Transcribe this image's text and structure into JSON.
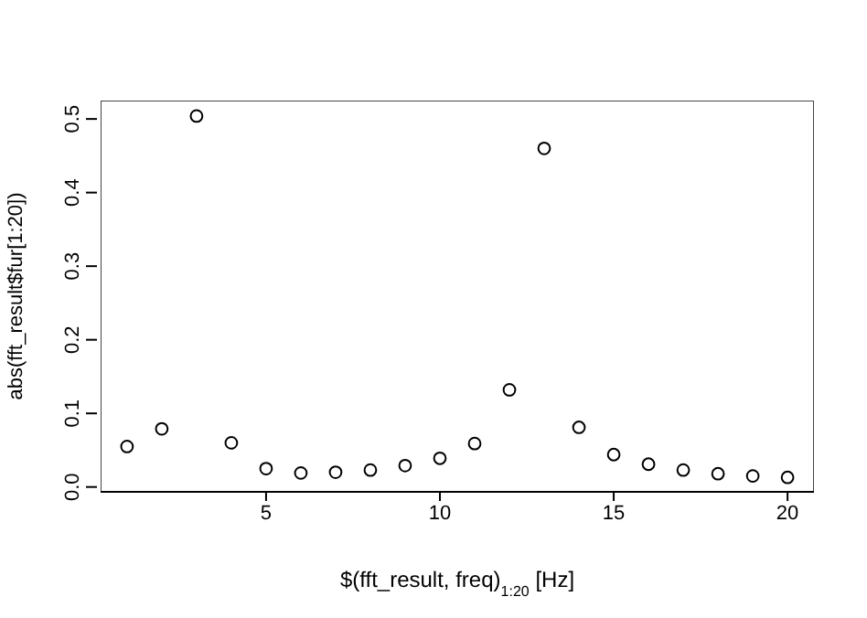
{
  "chart_data": {
    "type": "scatter",
    "xlabel": "$(fft_result, freq)$_{1:20}$ [Hz]",
    "ylabel": "abs(fft_result$fur[1:20])",
    "x": [
      1,
      2,
      3,
      4,
      5,
      6,
      7,
      8,
      9,
      10,
      11,
      12,
      13,
      14,
      15,
      16,
      17,
      18,
      19,
      20
    ],
    "values": [
      0.055,
      0.079,
      0.504,
      0.06,
      0.025,
      0.019,
      0.02,
      0.023,
      0.029,
      0.039,
      0.059,
      0.132,
      0.46,
      0.081,
      0.044,
      0.031,
      0.023,
      0.018,
      0.015,
      0.013
    ],
    "color": "#000000",
    "marker": "circle",
    "xlim": [
      0.24,
      20.76
    ],
    "xticks": [
      5,
      10,
      15,
      20
    ],
    "ylim": [
      -0.0066,
      0.525
    ],
    "yticks": [
      {
        "value": 0,
        "label": "0.0"
      },
      0.1,
      0.2,
      0.3,
      0.4,
      0.5
    ],
    "grid": false,
    "legend": false
  }
}
